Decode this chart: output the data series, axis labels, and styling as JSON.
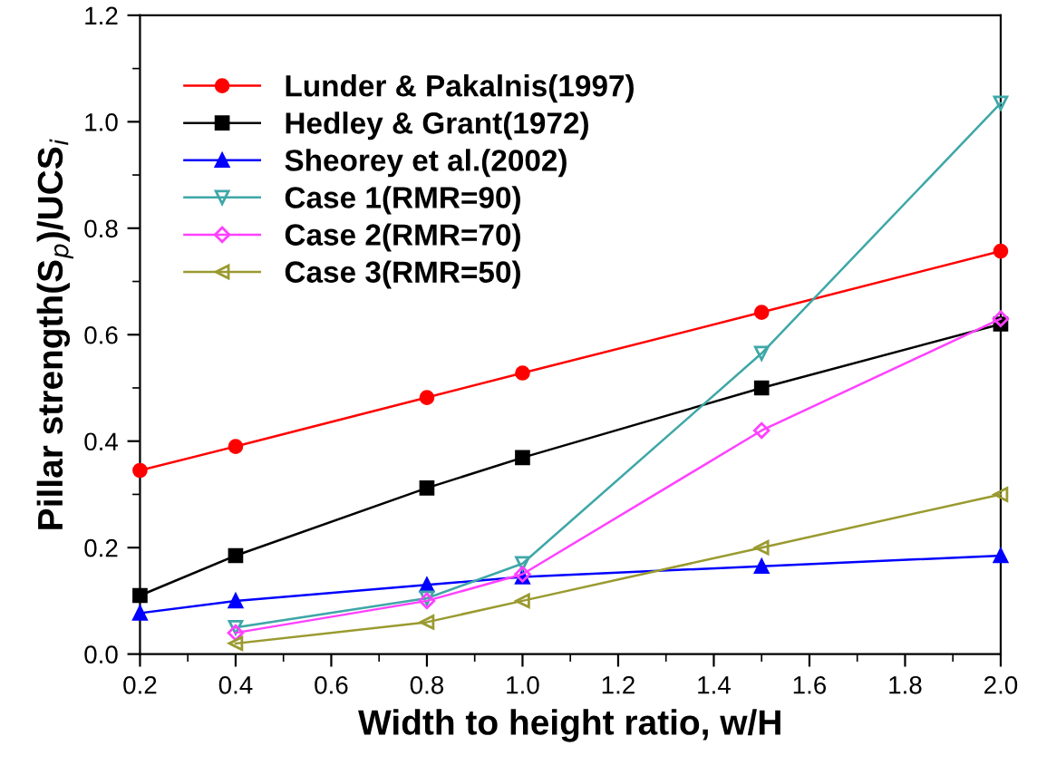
{
  "chart_data": {
    "type": "line",
    "xlabel": "Width to height ratio, w/H",
    "ylabel": "Pillar strength(S$_{p}$)/UCS$_{i}$",
    "x": [
      0.2,
      0.4,
      0.8,
      1.0,
      1.5,
      2.0
    ],
    "series": [
      {
        "name": "Lunder & Pakalnis(1997)",
        "color": "#ff0000",
        "marker": "circle",
        "values": [
          0.345,
          0.39,
          0.482,
          0.528,
          0.642,
          0.757
        ]
      },
      {
        "name": "Hedley & Grant(1972)",
        "color": "#000000",
        "marker": "square",
        "values": [
          0.11,
          0.185,
          0.312,
          0.369,
          0.5,
          0.62
        ]
      },
      {
        "name": "Sheorey et al.(2002)",
        "color": "#0000ff",
        "marker": "triangle",
        "values": [
          0.077,
          0.1,
          0.13,
          0.145,
          0.165,
          0.185
        ]
      },
      {
        "name": "Case 1(RMR=90)",
        "color": "#3fa7a7",
        "marker": "triangle_down",
        "values": [
          null,
          0.05,
          0.105,
          0.17,
          0.565,
          1.035
        ]
      },
      {
        "name": "Case 2(RMR=70)",
        "color": "#ff40ff",
        "marker": "diamond",
        "values": [
          null,
          0.04,
          0.1,
          0.15,
          0.42,
          0.63
        ]
      },
      {
        "name": "Case 3(RMR=50)",
        "color": "#9a9a30",
        "marker": "triangle_left",
        "values": [
          null,
          0.02,
          0.06,
          0.1,
          0.2,
          0.3
        ]
      }
    ],
    "xlim": [
      0.2,
      2.0
    ],
    "ylim": [
      0.0,
      1.2
    ],
    "xticks": [
      {
        "value": 0.2,
        "label": "0.2"
      },
      {
        "value": 0.4,
        "label": "0.4"
      },
      {
        "value": 0.6,
        "label": "0.6"
      },
      {
        "value": 0.8,
        "label": "0.8"
      },
      {
        "value": 1.0,
        "label": "1.0"
      },
      {
        "value": 1.2,
        "label": "1.2"
      },
      {
        "value": 1.4,
        "label": "1.4"
      },
      {
        "value": 1.6,
        "label": "1.6"
      },
      {
        "value": 1.8,
        "label": "1.8"
      },
      {
        "value": 2.0,
        "label": "2.0"
      }
    ],
    "yticks": [
      {
        "value": 0.0,
        "label": "0.0"
      },
      {
        "value": 0.2,
        "label": "0.2"
      },
      {
        "value": 0.4,
        "label": "0.4"
      },
      {
        "value": 0.6,
        "label": "0.6"
      },
      {
        "value": 0.8,
        "label": "0.8"
      },
      {
        "value": 1.0,
        "label": "1.0"
      },
      {
        "value": 1.2,
        "label": "1.2"
      }
    ],
    "grid": false,
    "legend": "top left",
    "line_style": "solid"
  }
}
